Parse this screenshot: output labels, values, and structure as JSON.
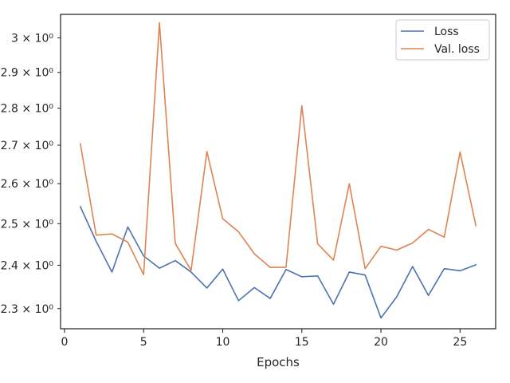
{
  "chart_data": {
    "type": "line",
    "title": "",
    "xlabel": "Epochs",
    "ylabel": "",
    "y_scale": "log",
    "xlim": [
      -0.25,
      27.25
    ],
    "ylim": [
      2.255,
      3.07
    ],
    "grid": false,
    "legend_position": "top-right",
    "x_ticks": [
      0,
      5,
      10,
      15,
      20,
      25
    ],
    "x_tick_labels": [
      "0",
      "5",
      "10",
      "15",
      "20",
      "25"
    ],
    "y_ticks": [
      2.3,
      2.4,
      2.5,
      2.6,
      2.7,
      2.8,
      2.9,
      3.0
    ],
    "y_tick_labels": [
      "2.3 × 10⁰",
      "2.4 × 10⁰",
      "2.5 × 10⁰",
      "2.6 × 10⁰",
      "2.7 × 10⁰",
      "2.8 × 10⁰",
      "2.9 × 10⁰",
      "3 × 10⁰"
    ],
    "x": [
      1,
      2,
      3,
      4,
      5,
      6,
      7,
      8,
      9,
      10,
      11,
      12,
      13,
      14,
      15,
      16,
      17,
      18,
      19,
      20,
      21,
      22,
      23,
      24,
      25,
      26
    ],
    "series": [
      {
        "name": "Loss",
        "color": "#4c72b0",
        "values": [
          2.542,
          2.457,
          2.384,
          2.492,
          2.422,
          2.393,
          2.411,
          2.384,
          2.347,
          2.391,
          2.318,
          2.348,
          2.323,
          2.39,
          2.373,
          2.375,
          2.31,
          2.384,
          2.377,
          2.279,
          2.327,
          2.397,
          2.33,
          2.392,
          2.387,
          2.401
        ]
      },
      {
        "name": "Val. loss",
        "color": "#dd8452",
        "values": [
          2.704,
          2.472,
          2.475,
          2.455,
          2.378,
          3.045,
          2.452,
          2.388,
          2.683,
          2.512,
          2.48,
          2.427,
          2.395,
          2.395,
          2.807,
          2.451,
          2.412,
          2.6,
          2.392,
          2.445,
          2.436,
          2.453,
          2.486,
          2.467,
          2.682,
          2.495
        ]
      }
    ]
  }
}
